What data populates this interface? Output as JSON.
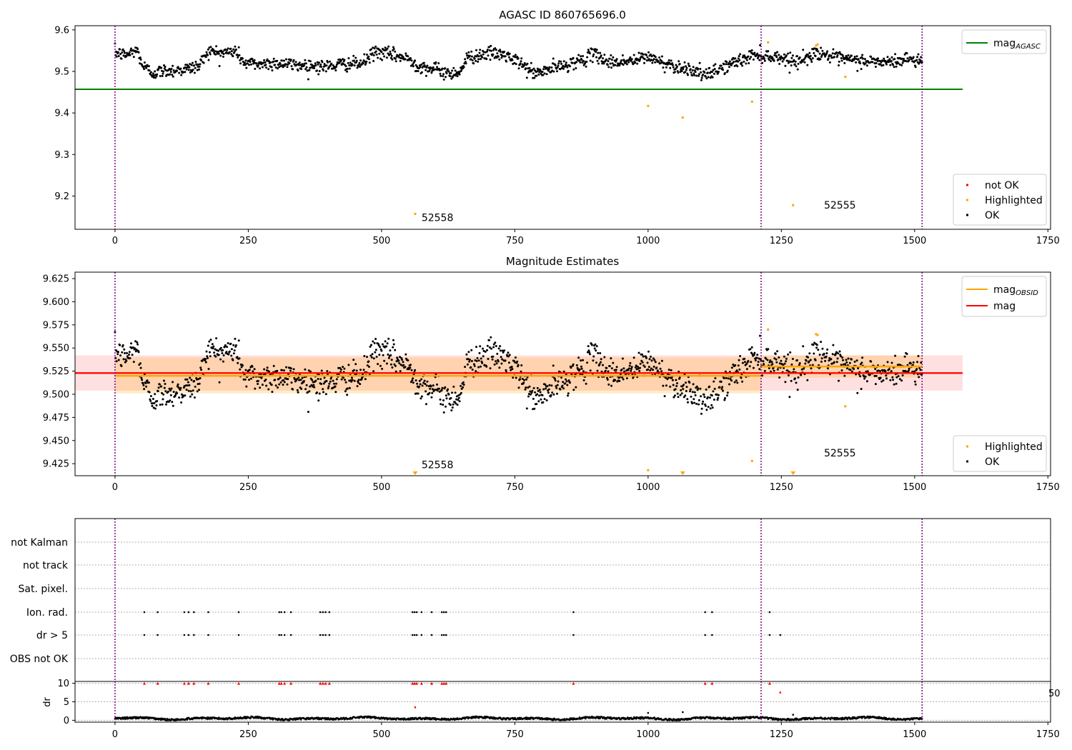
{
  "chart_data": [
    {
      "type": "scatter",
      "title": "AGASC ID 860765696.0",
      "xlim": [
        -75,
        1755
      ],
      "ylim": [
        9.12,
        9.61
      ],
      "x_ticks": [
        0,
        250,
        500,
        750,
        1000,
        1250,
        1500,
        1750
      ],
      "y_ticks": [
        9.2,
        9.3,
        9.4,
        9.5,
        9.6
      ],
      "y_tick_labels": [
        "9.2",
        "9.3",
        "9.4",
        "9.5",
        "9.6"
      ],
      "vlines": [
        0,
        1212,
        1514
      ],
      "hline": {
        "name": "mag_AGASC",
        "value": 9.457,
        "x_range": [
          -75,
          1590
        ],
        "color": "#008000"
      },
      "series": [
        {
          "name": "not OK",
          "color": "#ff0000",
          "points": []
        },
        {
          "name": "Highlighted",
          "color": "#ffa500",
          "points": [
            [
              563,
              9.157
            ],
            [
              1000,
              9.417
            ],
            [
              1065,
              9.389
            ],
            [
              1195,
              9.427
            ],
            [
              1225,
              9.57
            ],
            [
              1272,
              9.178
            ],
            [
              1315,
              9.562
            ],
            [
              1318,
              9.565
            ],
            [
              1370,
              9.487
            ]
          ]
        },
        {
          "name": "OK",
          "color": "#000000",
          "generated": true,
          "n": 1500
        }
      ],
      "annotations": [
        {
          "text": "52558",
          "x": 575,
          "y": 9.14
        },
        {
          "text": "52555",
          "x": 1330,
          "y": 9.17
        }
      ],
      "legend_top": [
        {
          "label_main": "mag",
          "label_sub": "AGASC",
          "color": "#008000"
        }
      ],
      "legend_bottom": [
        "not OK",
        "Highlighted",
        "OK"
      ],
      "grid": false
    },
    {
      "type": "scatter",
      "title": "Magnitude Estimates",
      "xlim": [
        -75,
        1755
      ],
      "ylim": [
        9.412,
        9.632
      ],
      "x_ticks": [
        0,
        250,
        500,
        750,
        1000,
        1250,
        1500,
        1750
      ],
      "y_ticks": [
        9.425,
        9.45,
        9.475,
        9.5,
        9.525,
        9.55,
        9.575,
        9.6,
        9.625
      ],
      "y_tick_labels": [
        "9.425",
        "9.450",
        "9.475",
        "9.500",
        "9.525",
        "9.550",
        "9.575",
        "9.600",
        "9.625"
      ],
      "vlines": [
        0,
        1212,
        1514
      ],
      "mag": {
        "value": 9.523,
        "band": [
          9.504,
          9.542
        ],
        "x_range": [
          -75,
          1590
        ],
        "color": "#ff0000"
      },
      "mag_obsid": [
        {
          "x_range": [
            0,
            1212
          ],
          "value": 9.52,
          "band": [
            9.501,
            9.54
          ]
        },
        {
          "x_range": [
            1212,
            1514
          ],
          "value": 9.53,
          "band": [
            9.518,
            9.542
          ]
        }
      ],
      "series": [
        {
          "name": "Highlighted",
          "color": "#ffa500",
          "points": [
            [
              1000,
              9.418
            ],
            [
              1195,
              9.428
            ],
            [
              1225,
              9.57
            ],
            [
              1315,
              9.565
            ],
            [
              1318,
              9.564
            ],
            [
              1370,
              9.487
            ]
          ]
        },
        {
          "name": "Highlighted (out of range)",
          "color": "#ffa500",
          "markers": [
            563,
            1065,
            1272
          ]
        },
        {
          "name": "OK",
          "color": "#000000",
          "generated": true,
          "n": 1500
        }
      ],
      "annotations": [
        {
          "text": "52558",
          "x": 575,
          "y": 9.42
        },
        {
          "text": "52555",
          "x": 1330,
          "y": 9.433
        }
      ],
      "legend_top": [
        {
          "label_main": "mag",
          "label_sub": "OBSID",
          "color": "#ffa500"
        },
        {
          "label_main": "mag",
          "label_sub": "",
          "color": "#ff0000"
        }
      ],
      "legend_bottom": [
        "Highlighted",
        "OK"
      ],
      "grid": false
    },
    {
      "type": "scatter",
      "xlim": [
        -75,
        1755
      ],
      "x_ticks": [
        0,
        250,
        500,
        750,
        1000,
        1250,
        1500,
        1750
      ],
      "vlines": [
        0,
        1212,
        1514
      ],
      "flag_rows": [
        "not Kalman",
        "not track",
        "Sat. pixel.",
        "Ion. rad.",
        "dr > 5",
        "OBS not OK"
      ],
      "flags": {
        "Ion. rad.": [
          55,
          80,
          130,
          138,
          148,
          175,
          232,
          308,
          312,
          318,
          330,
          385,
          390,
          395,
          402,
          558,
          562,
          566,
          575,
          594,
          613,
          617,
          621,
          860,
          1107,
          1120,
          1228
        ],
        "dr > 5": [
          55,
          80,
          130,
          138,
          148,
          175,
          232,
          308,
          312,
          318,
          330,
          385,
          390,
          395,
          402,
          558,
          562,
          566,
          575,
          594,
          613,
          617,
          621,
          860,
          1107,
          1120,
          1228,
          1248
        ]
      },
      "dr": {
        "ylabel": "dr",
        "ylim": [
          -0.5,
          10.5
        ],
        "y_ticks": [
          0,
          5,
          10
        ],
        "y_tick_labels": [
          "0",
          "5",
          "10"
        ],
        "red_at_10": [
          55,
          80,
          130,
          138,
          148,
          175,
          232,
          308,
          312,
          318,
          330,
          385,
          390,
          395,
          402,
          558,
          562,
          566,
          575,
          594,
          613,
          617,
          621,
          860,
          1107,
          1120,
          1228
        ],
        "red_other": [
          [
            1248,
            7.5
          ],
          [
            563,
            3.5
          ]
        ],
        "black_other": [
          [
            1000,
            2.0
          ],
          [
            1065,
            2.2
          ],
          [
            1272,
            1.5
          ]
        ],
        "baseline_n": 1500
      },
      "stray_text": "50"
    }
  ]
}
